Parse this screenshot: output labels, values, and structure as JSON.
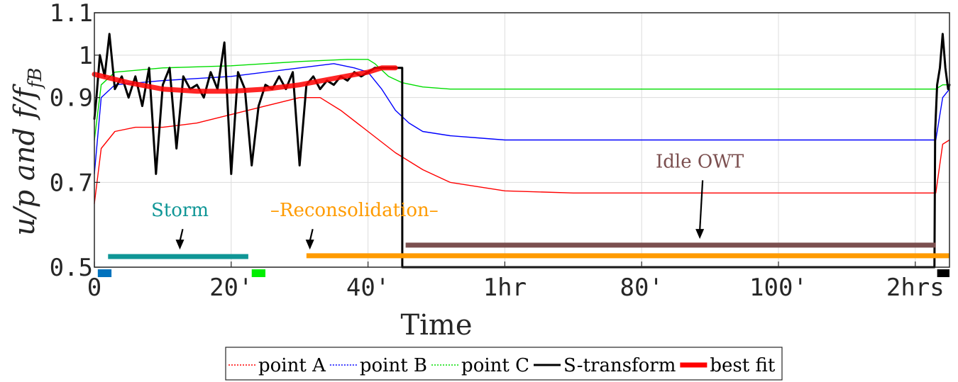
{
  "chart_data": {
    "type": "line",
    "xlabel": "Time",
    "ylabel": "u/p and f/f_fB",
    "ylabel_main": "u/p and f/f",
    "ylabel_sub": "fB",
    "xlim": [
      0,
      125
    ],
    "ylim": [
      0.5,
      1.1
    ],
    "grid": true,
    "legend_position": "bottom",
    "x_ticks": [
      {
        "value": 0,
        "label": "0"
      },
      {
        "value": 20,
        "label": "20'"
      },
      {
        "value": 40,
        "label": "40'"
      },
      {
        "value": 60,
        "label": "1hr"
      },
      {
        "value": 80,
        "label": "80'"
      },
      {
        "value": 100,
        "label": "100'"
      },
      {
        "value": 120,
        "label": "2hrs"
      }
    ],
    "y_ticks": [
      {
        "value": 0.5,
        "label": "0.5"
      },
      {
        "value": 0.7,
        "label": "0.7"
      },
      {
        "value": 0.9,
        "label": "0.9"
      },
      {
        "value": 1.0,
        "label": "1"
      },
      {
        "value": 1.1,
        "label": "1.1"
      }
    ],
    "series": [
      {
        "name": "point A",
        "color": "#ff0000",
        "style": "dotted-then-solid",
        "x": [
          0,
          1,
          3,
          6,
          10,
          15,
          20,
          25,
          30,
          33,
          36,
          40,
          44,
          48,
          52,
          56,
          60,
          70,
          80,
          90,
          100,
          110,
          115,
          123,
          124,
          125
        ],
        "y": [
          0.65,
          0.78,
          0.82,
          0.83,
          0.83,
          0.84,
          0.86,
          0.88,
          0.9,
          0.9,
          0.87,
          0.82,
          0.77,
          0.73,
          0.7,
          0.69,
          0.68,
          0.675,
          0.675,
          0.675,
          0.675,
          0.675,
          0.675,
          0.675,
          0.79,
          0.8
        ]
      },
      {
        "name": "point B",
        "color": "#0000ff",
        "style": "dotted-then-solid",
        "x": [
          0,
          1,
          3,
          10,
          20,
          30,
          35,
          38,
          40,
          42,
          44,
          46,
          48,
          52,
          56,
          60,
          70,
          80,
          90,
          100,
          110,
          115,
          123,
          124,
          125
        ],
        "y": [
          0.72,
          0.9,
          0.93,
          0.94,
          0.95,
          0.97,
          0.98,
          0.97,
          0.96,
          0.92,
          0.87,
          0.84,
          0.82,
          0.81,
          0.805,
          0.8,
          0.8,
          0.8,
          0.8,
          0.8,
          0.8,
          0.8,
          0.8,
          0.9,
          0.92
        ]
      },
      {
        "name": "point C",
        "color": "#00dd00",
        "style": "dotted-then-solid",
        "x": [
          0,
          1,
          3,
          10,
          20,
          30,
          37,
          40,
          41,
          43,
          45,
          48,
          52,
          56,
          60,
          70,
          80,
          90,
          100,
          110,
          115,
          123,
          124,
          125
        ],
        "y": [
          0.8,
          0.93,
          0.96,
          0.97,
          0.975,
          0.985,
          0.99,
          0.99,
          0.98,
          0.95,
          0.935,
          0.925,
          0.92,
          0.92,
          0.92,
          0.92,
          0.92,
          0.92,
          0.92,
          0.92,
          0.92,
          0.92,
          0.93,
          0.93
        ]
      },
      {
        "name": "S-transform",
        "color": "#000000",
        "style": "solid",
        "x": [
          0,
          0.3,
          0.8,
          1.5,
          2.2,
          3,
          4,
          5,
          6,
          7,
          8,
          9,
          10,
          11,
          12,
          13,
          14,
          15,
          16,
          17,
          18,
          19,
          20,
          21,
          22,
          23,
          24,
          25,
          26,
          27,
          28,
          29,
          30,
          31,
          32,
          33,
          34,
          35,
          36,
          37,
          38,
          39,
          40,
          41,
          42,
          43,
          44,
          45,
          45.01,
          45.02,
          122.8,
          122.9,
          123.2,
          123.6,
          124,
          124.4,
          124.8,
          125
        ],
        "y": [
          0.85,
          0.9,
          1.0,
          0.95,
          1.05,
          0.92,
          0.95,
          0.9,
          0.95,
          0.88,
          0.97,
          0.72,
          0.93,
          0.97,
          0.78,
          0.95,
          0.92,
          0.93,
          0.9,
          0.96,
          0.92,
          1.03,
          0.72,
          0.96,
          0.92,
          0.74,
          0.88,
          0.93,
          0.92,
          0.95,
          0.92,
          0.96,
          0.74,
          0.93,
          0.95,
          0.92,
          0.94,
          0.93,
          0.95,
          0.94,
          0.96,
          0.95,
          0.96,
          0.97,
          0.97,
          0.97,
          0.97,
          0.97,
          0.5,
          0.5,
          0.5,
          0.82,
          0.93,
          0.97,
          1.05,
          0.97,
          0.92,
          0.93
        ]
      },
      {
        "name": "best fit",
        "color": "#ff0000",
        "style": "thick",
        "x": [
          0,
          5,
          10,
          15,
          20,
          25,
          30,
          35,
          40,
          42,
          44
        ],
        "y": [
          0.955,
          0.935,
          0.92,
          0.915,
          0.915,
          0.92,
          0.93,
          0.945,
          0.96,
          0.97,
          0.97
        ]
      }
    ],
    "phase_bars": [
      {
        "x0": 2,
        "x1": 22.5,
        "y": 0.525,
        "color": "#0f9696"
      },
      {
        "x0": 31,
        "x1": 125,
        "y": 0.527,
        "color": "#ff9b00"
      },
      {
        "x0": 45.5,
        "x1": 123,
        "y": 0.552,
        "color": "#7b4f4f"
      }
    ],
    "bottom_markers": [
      {
        "x0": 0.5,
        "x1": 2.5,
        "color": "#0072bd"
      },
      {
        "x0": 23,
        "x1": 25,
        "color": "#00ee00"
      },
      {
        "x0": 123.2,
        "x1": 125,
        "color": "#000000"
      }
    ],
    "annotations": [
      {
        "text": "Storm",
        "x": 12.5,
        "y": 0.62,
        "color": "#0f9696",
        "arrow_to": [
          12.5,
          0.545
        ]
      },
      {
        "text": "–Reconsolidation–",
        "x": 38,
        "y": 0.62,
        "color": "#ff9b00",
        "arrow_to": [
          31.5,
          0.545
        ]
      },
      {
        "text": "Idle OWT",
        "x": 88.5,
        "y": 0.735,
        "color": "#7b4f4f",
        "arrow_to": [
          88.5,
          0.57
        ]
      }
    ],
    "legend": [
      {
        "label": "point A",
        "color": "#ff0000",
        "style": "dotted"
      },
      {
        "label": "point B",
        "color": "#0000ff",
        "style": "dotted"
      },
      {
        "label": "point C",
        "color": "#00dd00",
        "style": "dotted"
      },
      {
        "label": "S-transform",
        "color": "#000000",
        "style": "solid"
      },
      {
        "label": "best fit",
        "color": "#ff0000",
        "style": "thick"
      }
    ]
  }
}
